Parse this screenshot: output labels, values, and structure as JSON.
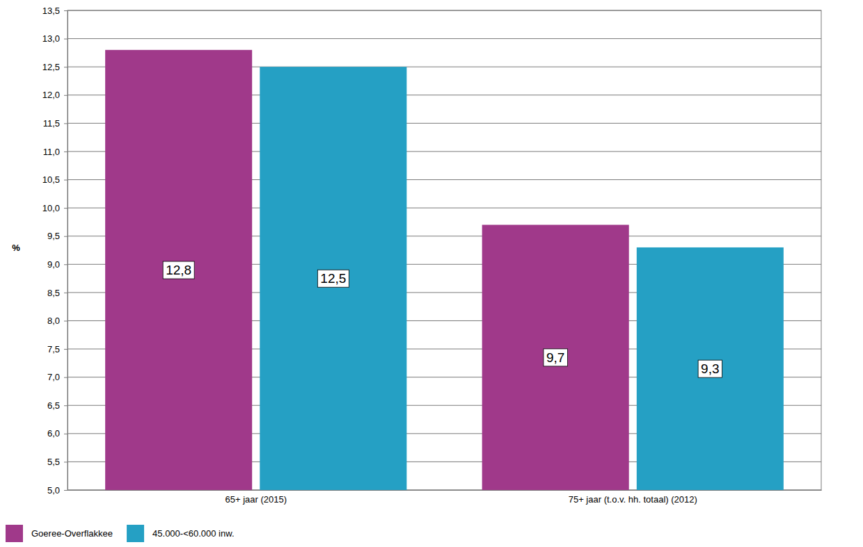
{
  "chart_data": {
    "type": "bar",
    "y_label": "%",
    "categories": [
      "65+ jaar (2015)",
      "75+ jaar (t.o.v. hh. totaal) (2012)"
    ],
    "series": [
      {
        "name": "Goeree-Overflakkee",
        "color": "#a0398a",
        "values": [
          12.8,
          9.7
        ],
        "value_labels": [
          "12,8",
          "9,7"
        ]
      },
      {
        "name": "45.000-<60.000 inw.",
        "color": "#25a0c4",
        "values": [
          12.5,
          9.3
        ],
        "value_labels": [
          "12,5",
          "9,3"
        ]
      }
    ],
    "ylim": [
      5.0,
      13.5
    ],
    "yticks": [
      {
        "value": 5.0,
        "label": "5,0"
      },
      {
        "value": 5.5,
        "label": "5,5"
      },
      {
        "value": 6.0,
        "label": "6,0"
      },
      {
        "value": 6.5,
        "label": "6,5"
      },
      {
        "value": 7.0,
        "label": "7,0"
      },
      {
        "value": 7.5,
        "label": "7,5"
      },
      {
        "value": 8.0,
        "label": "8,0"
      },
      {
        "value": 8.5,
        "label": "8,5"
      },
      {
        "value": 9.0,
        "label": "9,0"
      },
      {
        "value": 9.5,
        "label": "9,5"
      },
      {
        "value": 10.0,
        "label": "10,0"
      },
      {
        "value": 10.5,
        "label": "10,5"
      },
      {
        "value": 11.0,
        "label": "11,0"
      },
      {
        "value": 11.5,
        "label": "11,5"
      },
      {
        "value": 12.0,
        "label": "12,0"
      },
      {
        "value": 12.5,
        "label": "12,5"
      },
      {
        "value": 13.0,
        "label": "13,0"
      },
      {
        "value": 13.5,
        "label": "13,5"
      }
    ],
    "grid": true,
    "data_labels": true,
    "legend": "bottom-left"
  }
}
